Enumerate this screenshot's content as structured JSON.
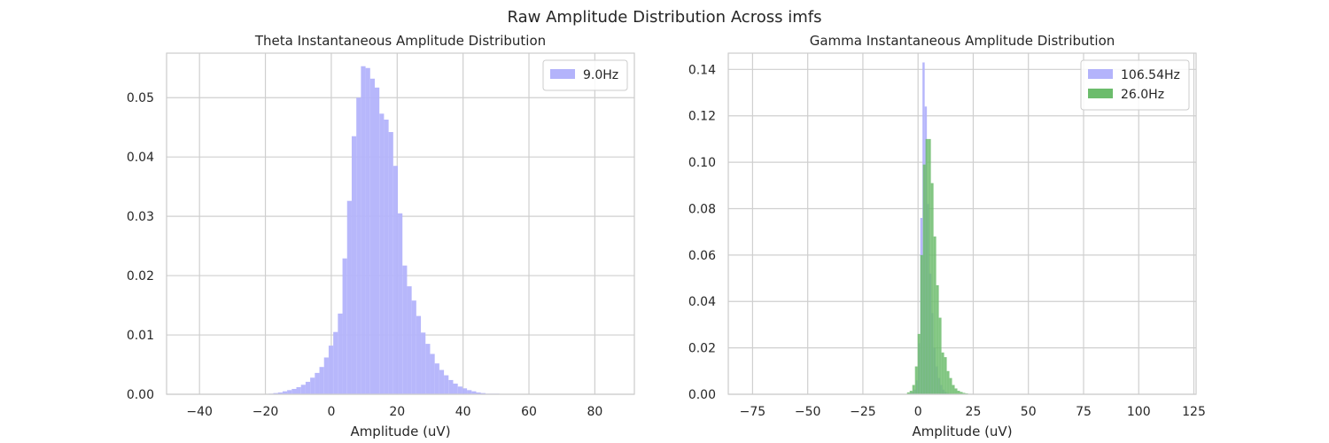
{
  "figure_title": "Raw Amplitude Distribution Across imfs",
  "chart_data": [
    {
      "type": "histogram",
      "title": "Theta Instantaneous Amplitude Distribution",
      "xlabel": "Amplitude (uV)",
      "ylabel": "",
      "xlim": [
        -50,
        92
      ],
      "ylim": [
        0,
        0.0575
      ],
      "xticks": [
        -40,
        -20,
        0,
        20,
        40,
        60,
        80
      ],
      "yticks": [
        0.0,
        0.01,
        0.02,
        0.03,
        0.04,
        0.05
      ],
      "grid": true,
      "legend_position": "top-right",
      "series": [
        {
          "name": "9.0Hz",
          "color": "#b3b3fb",
          "bin_width": 1.4,
          "bins": [
            [
              -19.0,
              0.0001
            ],
            [
              -17.6,
              0.0002
            ],
            [
              -16.2,
              0.0003
            ],
            [
              -14.8,
              0.0005
            ],
            [
              -13.4,
              0.0007
            ],
            [
              -12.0,
              0.0009
            ],
            [
              -10.6,
              0.0012
            ],
            [
              -9.2,
              0.0016
            ],
            [
              -7.8,
              0.0021
            ],
            [
              -6.4,
              0.0028
            ],
            [
              -5.0,
              0.0036
            ],
            [
              -3.6,
              0.0046
            ],
            [
              -2.2,
              0.0062
            ],
            [
              -0.8,
              0.0082
            ],
            [
              0.6,
              0.0105
            ],
            [
              2.0,
              0.0136
            ],
            [
              3.4,
              0.0229
            ],
            [
              4.8,
              0.0326
            ],
            [
              6.2,
              0.0435
            ],
            [
              7.6,
              0.05
            ],
            [
              9.0,
              0.0553
            ],
            [
              10.4,
              0.055
            ],
            [
              11.8,
              0.0532
            ],
            [
              13.2,
              0.0517
            ],
            [
              14.6,
              0.0473
            ],
            [
              16.0,
              0.0463
            ],
            [
              17.4,
              0.0442
            ],
            [
              18.8,
              0.0385
            ],
            [
              20.2,
              0.0305
            ],
            [
              21.6,
              0.0217
            ],
            [
              23.0,
              0.0182
            ],
            [
              24.4,
              0.0158
            ],
            [
              25.8,
              0.0132
            ],
            [
              27.2,
              0.0104
            ],
            [
              28.6,
              0.0085
            ],
            [
              30.0,
              0.0068
            ],
            [
              31.4,
              0.0052
            ],
            [
              32.8,
              0.0041
            ],
            [
              34.2,
              0.0032
            ],
            [
              35.6,
              0.0024
            ],
            [
              37.0,
              0.0018
            ],
            [
              38.4,
              0.0013
            ],
            [
              39.8,
              0.001
            ],
            [
              41.2,
              0.0007
            ],
            [
              42.6,
              0.0005
            ],
            [
              44.0,
              0.0003
            ],
            [
              45.4,
              0.0002
            ],
            [
              46.8,
              0.0001
            ],
            [
              48.2,
              0.0001
            ],
            [
              49.6,
              0.0001
            ]
          ]
        }
      ]
    },
    {
      "type": "histogram",
      "title": "Gamma Instantaneous Amplitude Distribution",
      "xlabel": "Amplitude (uV)",
      "ylabel": "",
      "xlim": [
        -86,
        126
      ],
      "ylim": [
        0,
        0.147
      ],
      "xticks": [
        -75,
        -50,
        -25,
        0,
        25,
        50,
        75,
        100,
        125
      ],
      "yticks": [
        0.0,
        0.02,
        0.04,
        0.06,
        0.08,
        0.1,
        0.12,
        0.14
      ],
      "grid": true,
      "legend_position": "top-right",
      "series": [
        {
          "name": "106.54Hz",
          "color": "#b3b3fb",
          "bin_width": 1.0,
          "bins": [
            [
              -4.0,
              0.0005
            ],
            [
              -3.0,
              0.001
            ],
            [
              -2.0,
              0.002
            ],
            [
              -1.0,
              0.006
            ],
            [
              0.0,
              0.022
            ],
            [
              1.0,
              0.076
            ],
            [
              2.0,
              0.143
            ],
            [
              3.0,
              0.124
            ],
            [
              4.0,
              0.082
            ],
            [
              5.0,
              0.052
            ],
            [
              6.0,
              0.035
            ],
            [
              7.0,
              0.02
            ],
            [
              8.0,
              0.012
            ],
            [
              9.0,
              0.007
            ],
            [
              10.0,
              0.004
            ],
            [
              11.0,
              0.002
            ],
            [
              12.0,
              0.001
            ],
            [
              13.0,
              0.0005
            ],
            [
              14.0,
              0.0003
            ],
            [
              15.0,
              0.0002
            ]
          ]
        },
        {
          "name": "26.0Hz",
          "color": "#6cbc6c",
          "bin_width": 1.2,
          "bins": [
            [
              -5.0,
              0.0008
            ],
            [
              -3.8,
              0.0015
            ],
            [
              -2.6,
              0.004
            ],
            [
              -1.4,
              0.012
            ],
            [
              -0.2,
              0.026
            ],
            [
              1.0,
              0.06
            ],
            [
              2.2,
              0.099
            ],
            [
              3.4,
              0.11
            ],
            [
              4.6,
              0.11
            ],
            [
              5.8,
              0.091
            ],
            [
              7.0,
              0.068
            ],
            [
              8.2,
              0.047
            ],
            [
              9.4,
              0.033
            ],
            [
              10.6,
              0.018
            ],
            [
              11.8,
              0.016
            ],
            [
              13.0,
              0.01
            ],
            [
              14.2,
              0.007
            ],
            [
              15.4,
              0.004
            ],
            [
              16.6,
              0.0025
            ],
            [
              17.8,
              0.0015
            ],
            [
              19.0,
              0.001
            ],
            [
              20.2,
              0.0006
            ],
            [
              21.4,
              0.0004
            ],
            [
              22.6,
              0.0002
            ],
            [
              23.8,
              0.0001
            ],
            [
              25.0,
              0.0001
            ]
          ]
        }
      ]
    }
  ]
}
